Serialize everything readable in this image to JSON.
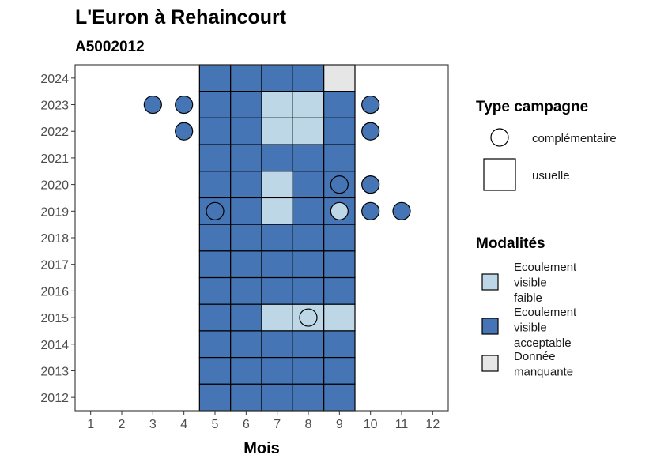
{
  "chart_data": {
    "type": "heatmap",
    "title": "L'Euron à Rehaincourt",
    "subtitle": "A5002012",
    "xlabel": "Mois",
    "ylabel": "",
    "x_ticks": [
      "1",
      "2",
      "3",
      "4",
      "5",
      "6",
      "7",
      "8",
      "9",
      "10",
      "11",
      "12"
    ],
    "y_ticks": [
      "2012",
      "2013",
      "2014",
      "2015",
      "2016",
      "2017",
      "2018",
      "2019",
      "2020",
      "2021",
      "2022",
      "2023",
      "2024"
    ],
    "xlim": [
      0.5,
      12.5
    ],
    "ylim": [
      2011.5,
      2024.5
    ],
    "grid": false,
    "colors": {
      "Ecoulement visible faible": "#bdd7e7",
      "Ecoulement visible acceptable": "#4575b4",
      "Donnée manquante": "#e6e6e6"
    },
    "usuelle": [
      {
        "year": 2024,
        "month": 5,
        "modalite": "Ecoulement visible acceptable"
      },
      {
        "year": 2024,
        "month": 6,
        "modalite": "Ecoulement visible acceptable"
      },
      {
        "year": 2024,
        "month": 7,
        "modalite": "Ecoulement visible acceptable"
      },
      {
        "year": 2024,
        "month": 8,
        "modalite": "Ecoulement visible acceptable"
      },
      {
        "year": 2024,
        "month": 9,
        "modalite": "Donnée manquante"
      },
      {
        "year": 2023,
        "month": 5,
        "modalite": "Ecoulement visible acceptable"
      },
      {
        "year": 2023,
        "month": 6,
        "modalite": "Ecoulement visible acceptable"
      },
      {
        "year": 2023,
        "month": 7,
        "modalite": "Ecoulement visible faible"
      },
      {
        "year": 2023,
        "month": 8,
        "modalite": "Ecoulement visible faible"
      },
      {
        "year": 2023,
        "month": 9,
        "modalite": "Ecoulement visible acceptable"
      },
      {
        "year": 2022,
        "month": 5,
        "modalite": "Ecoulement visible acceptable"
      },
      {
        "year": 2022,
        "month": 6,
        "modalite": "Ecoulement visible acceptable"
      },
      {
        "year": 2022,
        "month": 7,
        "modalite": "Ecoulement visible faible"
      },
      {
        "year": 2022,
        "month": 8,
        "modalite": "Ecoulement visible faible"
      },
      {
        "year": 2022,
        "month": 9,
        "modalite": "Ecoulement visible acceptable"
      },
      {
        "year": 2021,
        "month": 5,
        "modalite": "Ecoulement visible acceptable"
      },
      {
        "year": 2021,
        "month": 6,
        "modalite": "Ecoulement visible acceptable"
      },
      {
        "year": 2021,
        "month": 7,
        "modalite": "Ecoulement visible acceptable"
      },
      {
        "year": 2021,
        "month": 8,
        "modalite": "Ecoulement visible acceptable"
      },
      {
        "year": 2021,
        "month": 9,
        "modalite": "Ecoulement visible acceptable"
      },
      {
        "year": 2020,
        "month": 5,
        "modalite": "Ecoulement visible acceptable"
      },
      {
        "year": 2020,
        "month": 6,
        "modalite": "Ecoulement visible acceptable"
      },
      {
        "year": 2020,
        "month": 7,
        "modalite": "Ecoulement visible faible"
      },
      {
        "year": 2020,
        "month": 8,
        "modalite": "Ecoulement visible acceptable"
      },
      {
        "year": 2020,
        "month": 9,
        "modalite": "Ecoulement visible acceptable"
      },
      {
        "year": 2019,
        "month": 5,
        "modalite": "Ecoulement visible acceptable"
      },
      {
        "year": 2019,
        "month": 6,
        "modalite": "Ecoulement visible acceptable"
      },
      {
        "year": 2019,
        "month": 7,
        "modalite": "Ecoulement visible faible"
      },
      {
        "year": 2019,
        "month": 8,
        "modalite": "Ecoulement visible acceptable"
      },
      {
        "year": 2019,
        "month": 9,
        "modalite": "Ecoulement visible acceptable"
      },
      {
        "year": 2018,
        "month": 5,
        "modalite": "Ecoulement visible acceptable"
      },
      {
        "year": 2018,
        "month": 6,
        "modalite": "Ecoulement visible acceptable"
      },
      {
        "year": 2018,
        "month": 7,
        "modalite": "Ecoulement visible acceptable"
      },
      {
        "year": 2018,
        "month": 8,
        "modalite": "Ecoulement visible acceptable"
      },
      {
        "year": 2018,
        "month": 9,
        "modalite": "Ecoulement visible acceptable"
      },
      {
        "year": 2017,
        "month": 5,
        "modalite": "Ecoulement visible acceptable"
      },
      {
        "year": 2017,
        "month": 6,
        "modalite": "Ecoulement visible acceptable"
      },
      {
        "year": 2017,
        "month": 7,
        "modalite": "Ecoulement visible acceptable"
      },
      {
        "year": 2017,
        "month": 8,
        "modalite": "Ecoulement visible acceptable"
      },
      {
        "year": 2017,
        "month": 9,
        "modalite": "Ecoulement visible acceptable"
      },
      {
        "year": 2016,
        "month": 5,
        "modalite": "Ecoulement visible acceptable"
      },
      {
        "year": 2016,
        "month": 6,
        "modalite": "Ecoulement visible acceptable"
      },
      {
        "year": 2016,
        "month": 7,
        "modalite": "Ecoulement visible acceptable"
      },
      {
        "year": 2016,
        "month": 8,
        "modalite": "Ecoulement visible acceptable"
      },
      {
        "year": 2016,
        "month": 9,
        "modalite": "Ecoulement visible acceptable"
      },
      {
        "year": 2015,
        "month": 5,
        "modalite": "Ecoulement visible acceptable"
      },
      {
        "year": 2015,
        "month": 6,
        "modalite": "Ecoulement visible acceptable"
      },
      {
        "year": 2015,
        "month": 7,
        "modalite": "Ecoulement visible faible"
      },
      {
        "year": 2015,
        "month": 8,
        "modalite": "Ecoulement visible faible"
      },
      {
        "year": 2015,
        "month": 9,
        "modalite": "Ecoulement visible faible"
      },
      {
        "year": 2014,
        "month": 5,
        "modalite": "Ecoulement visible acceptable"
      },
      {
        "year": 2014,
        "month": 6,
        "modalite": "Ecoulement visible acceptable"
      },
      {
        "year": 2014,
        "month": 7,
        "modalite": "Ecoulement visible acceptable"
      },
      {
        "year": 2014,
        "month": 8,
        "modalite": "Ecoulement visible acceptable"
      },
      {
        "year": 2014,
        "month": 9,
        "modalite": "Ecoulement visible acceptable"
      },
      {
        "year": 2013,
        "month": 5,
        "modalite": "Ecoulement visible acceptable"
      },
      {
        "year": 2013,
        "month": 6,
        "modalite": "Ecoulement visible acceptable"
      },
      {
        "year": 2013,
        "month": 7,
        "modalite": "Ecoulement visible acceptable"
      },
      {
        "year": 2013,
        "month": 8,
        "modalite": "Ecoulement visible acceptable"
      },
      {
        "year": 2013,
        "month": 9,
        "modalite": "Ecoulement visible acceptable"
      },
      {
        "year": 2012,
        "month": 5,
        "modalite": "Ecoulement visible acceptable"
      },
      {
        "year": 2012,
        "month": 6,
        "modalite": "Ecoulement visible acceptable"
      },
      {
        "year": 2012,
        "month": 7,
        "modalite": "Ecoulement visible acceptable"
      },
      {
        "year": 2012,
        "month": 8,
        "modalite": "Ecoulement visible acceptable"
      },
      {
        "year": 2012,
        "month": 9,
        "modalite": "Ecoulement visible acceptable"
      }
    ],
    "complementaire": [
      {
        "year": 2023,
        "month": 3,
        "modalite": "Ecoulement visible acceptable"
      },
      {
        "year": 2023,
        "month": 4,
        "modalite": "Ecoulement visible acceptable"
      },
      {
        "year": 2023,
        "month": 10,
        "modalite": "Ecoulement visible acceptable"
      },
      {
        "year": 2022,
        "month": 4,
        "modalite": "Ecoulement visible acceptable"
      },
      {
        "year": 2022,
        "month": 10,
        "modalite": "Ecoulement visible acceptable"
      },
      {
        "year": 2020,
        "month": 9,
        "modalite": "Ecoulement visible acceptable"
      },
      {
        "year": 2020,
        "month": 10,
        "modalite": "Ecoulement visible acceptable"
      },
      {
        "year": 2019,
        "month": 5,
        "modalite": "Ecoulement visible acceptable"
      },
      {
        "year": 2019,
        "month": 9,
        "modalite": "Ecoulement visible faible"
      },
      {
        "year": 2019,
        "month": 10,
        "modalite": "Ecoulement visible acceptable"
      },
      {
        "year": 2019,
        "month": 11,
        "modalite": "Ecoulement visible acceptable"
      },
      {
        "year": 2015,
        "month": 8,
        "modalite": "Ecoulement visible faible"
      }
    ],
    "legend": {
      "type_title": "Type campagne",
      "type_items": [
        {
          "shape": "circle",
          "label": "complémentaire"
        },
        {
          "shape": "square",
          "label": "usuelle"
        }
      ],
      "modalites_title": "Modalités",
      "modalites_items": [
        {
          "key": "Ecoulement visible faible",
          "lines": [
            "Ecoulement",
            "visible",
            "faible"
          ]
        },
        {
          "key": "Ecoulement visible acceptable",
          "lines": [
            "Ecoulement",
            "visible",
            "acceptable"
          ]
        },
        {
          "key": "Donnée manquante",
          "lines": [
            "Donnée",
            "manquante"
          ]
        }
      ],
      "placement": "right"
    }
  }
}
